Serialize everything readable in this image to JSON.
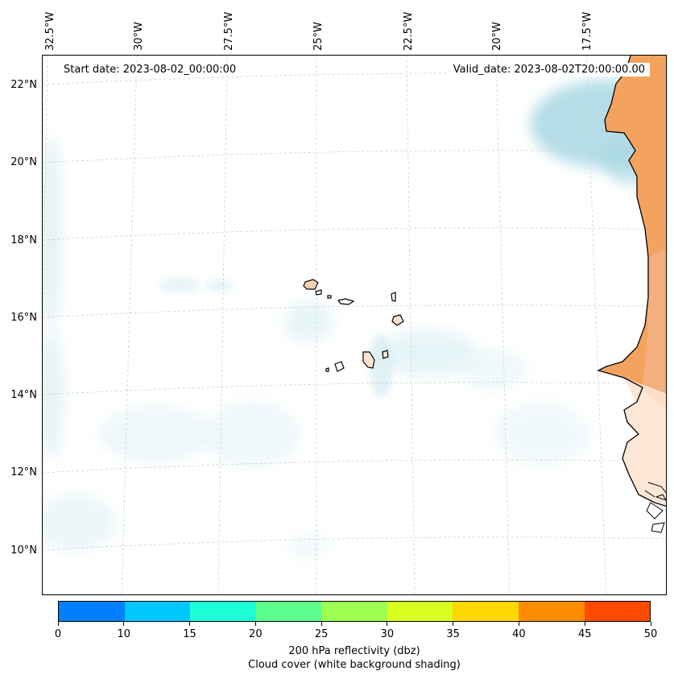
{
  "map": {
    "start_date": "Start date: 2023-08-02_00:00:00",
    "valid_date": "Valid_date: 2023-08-02T20:00:00.00",
    "lon_labels": [
      "32.5°W",
      "30°W",
      "27.5°W",
      "25°W",
      "22.5°W",
      "20°W",
      "17.5°W"
    ],
    "lat_labels": [
      "22°N",
      "20°N",
      "18°N",
      "16°N",
      "14°N",
      "12°N",
      "10°N"
    ],
    "land_color": "#f4a35e",
    "cloud_color": "#a9d8e3",
    "gridline": "dashed"
  },
  "colorbar": {
    "ticks": [
      "0",
      "10",
      "15",
      "20",
      "25",
      "30",
      "35",
      "40",
      "45",
      "50"
    ],
    "colors": [
      "#0080ff",
      "#00c8ff",
      "#1effd8",
      "#5cff8c",
      "#9cff52",
      "#d8ff20",
      "#ffd800",
      "#ff8c00",
      "#ff4b00"
    ],
    "label": "200 hPa reflectivity (dbz)",
    "sublabel": "Cloud cover (white background shading)"
  }
}
